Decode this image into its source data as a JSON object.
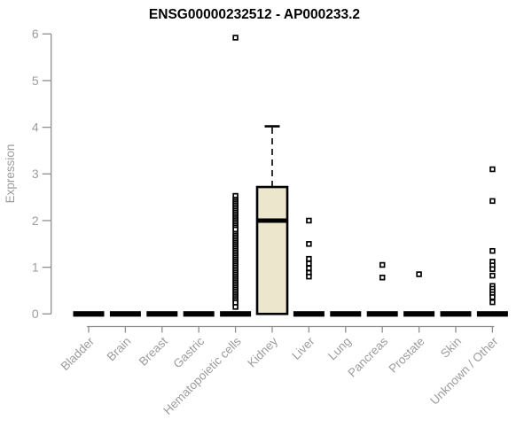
{
  "chart_data": {
    "type": "box",
    "title": "ENSG00000232512 - AP000233.2",
    "ylabel": "Expression",
    "xlabel": "",
    "ylim": [
      0,
      6
    ],
    "yticks": [
      0,
      1,
      2,
      3,
      4,
      5,
      6
    ],
    "grid": false,
    "legend": "none",
    "categories": [
      "Bladder",
      "Brain",
      "Breast",
      "Gastric",
      "Hematopoietic cells",
      "Kidney",
      "Liver",
      "Lung",
      "Pancreas",
      "Prostate",
      "Skin",
      "Unknown / Other"
    ],
    "boxes": [
      {
        "category": "Bladder",
        "q1": 0,
        "median": 0,
        "q3": 0,
        "whisker_low": 0,
        "whisker_high": 0,
        "outliers": []
      },
      {
        "category": "Brain",
        "q1": 0,
        "median": 0,
        "q3": 0,
        "whisker_low": 0,
        "whisker_high": 0,
        "outliers": []
      },
      {
        "category": "Breast",
        "q1": 0,
        "median": 0,
        "q3": 0,
        "whisker_low": 0,
        "whisker_high": 0,
        "outliers": []
      },
      {
        "category": "Gastric",
        "q1": 0,
        "median": 0,
        "q3": 0,
        "whisker_low": 0,
        "whisker_high": 0,
        "outliers": []
      },
      {
        "category": "Hematopoietic cells",
        "q1": 0,
        "median": 0,
        "q3": 0,
        "whisker_low": 0,
        "whisker_high": 0,
        "outliers": [
          5.92,
          2.53,
          2.45,
          2.41,
          2.37,
          2.33,
          2.29,
          2.25,
          2.21,
          2.17,
          2.13,
          2.09,
          2.05,
          2.01,
          1.97,
          1.93,
          1.89,
          1.85,
          1.81,
          1.72,
          1.68,
          1.64,
          1.6,
          1.56,
          1.52,
          1.48,
          1.44,
          1.4,
          1.36,
          1.32,
          1.28,
          1.24,
          1.2,
          1.16,
          1.12,
          1.08,
          1.04,
          1.0,
          0.96,
          0.92,
          0.88,
          0.84,
          0.8,
          0.76,
          0.72,
          0.68,
          0.64,
          0.6,
          0.56,
          0.52,
          0.48,
          0.44,
          0.4,
          0.36,
          0.32,
          0.28,
          0.24,
          0.15
        ]
      },
      {
        "category": "Kidney",
        "q1": 0,
        "median": 2.0,
        "q3": 2.72,
        "whisker_low": 0,
        "whisker_high": 4.02,
        "outliers": []
      },
      {
        "category": "Liver",
        "q1": 0,
        "median": 0,
        "q3": 0,
        "whisker_low": 0,
        "whisker_high": 0,
        "outliers": [
          2.0,
          1.5,
          1.18,
          1.08,
          0.98,
          0.88,
          0.8
        ]
      },
      {
        "category": "Lung",
        "q1": 0,
        "median": 0,
        "q3": 0,
        "whisker_low": 0,
        "whisker_high": 0,
        "outliers": []
      },
      {
        "category": "Pancreas",
        "q1": 0,
        "median": 0,
        "q3": 0,
        "whisker_low": 0,
        "whisker_high": 0,
        "outliers": [
          1.05,
          0.78
        ]
      },
      {
        "category": "Prostate",
        "q1": 0,
        "median": 0,
        "q3": 0,
        "whisker_low": 0,
        "whisker_high": 0,
        "outliers": [
          0.85
        ]
      },
      {
        "category": "Skin",
        "q1": 0,
        "median": 0,
        "q3": 0,
        "whisker_low": 0,
        "whisker_high": 0,
        "outliers": []
      },
      {
        "category": "Unknown / Other",
        "q1": 0,
        "median": 0,
        "q3": 0,
        "whisker_low": 0,
        "whisker_high": 0,
        "outliers": [
          3.1,
          2.42,
          1.35,
          1.12,
          1.04,
          0.96,
          0.82,
          0.6,
          0.54,
          0.48,
          0.42,
          0.36,
          0.25
        ]
      }
    ],
    "colors": {
      "box_fill": "#ece6cc",
      "box_border": "#000000",
      "median": "#000000",
      "outlier": "#000000",
      "axis": "#8f8f8f",
      "tick_label": "#9c9c9c",
      "title": "#000000",
      "background": "#ffffff"
    }
  }
}
